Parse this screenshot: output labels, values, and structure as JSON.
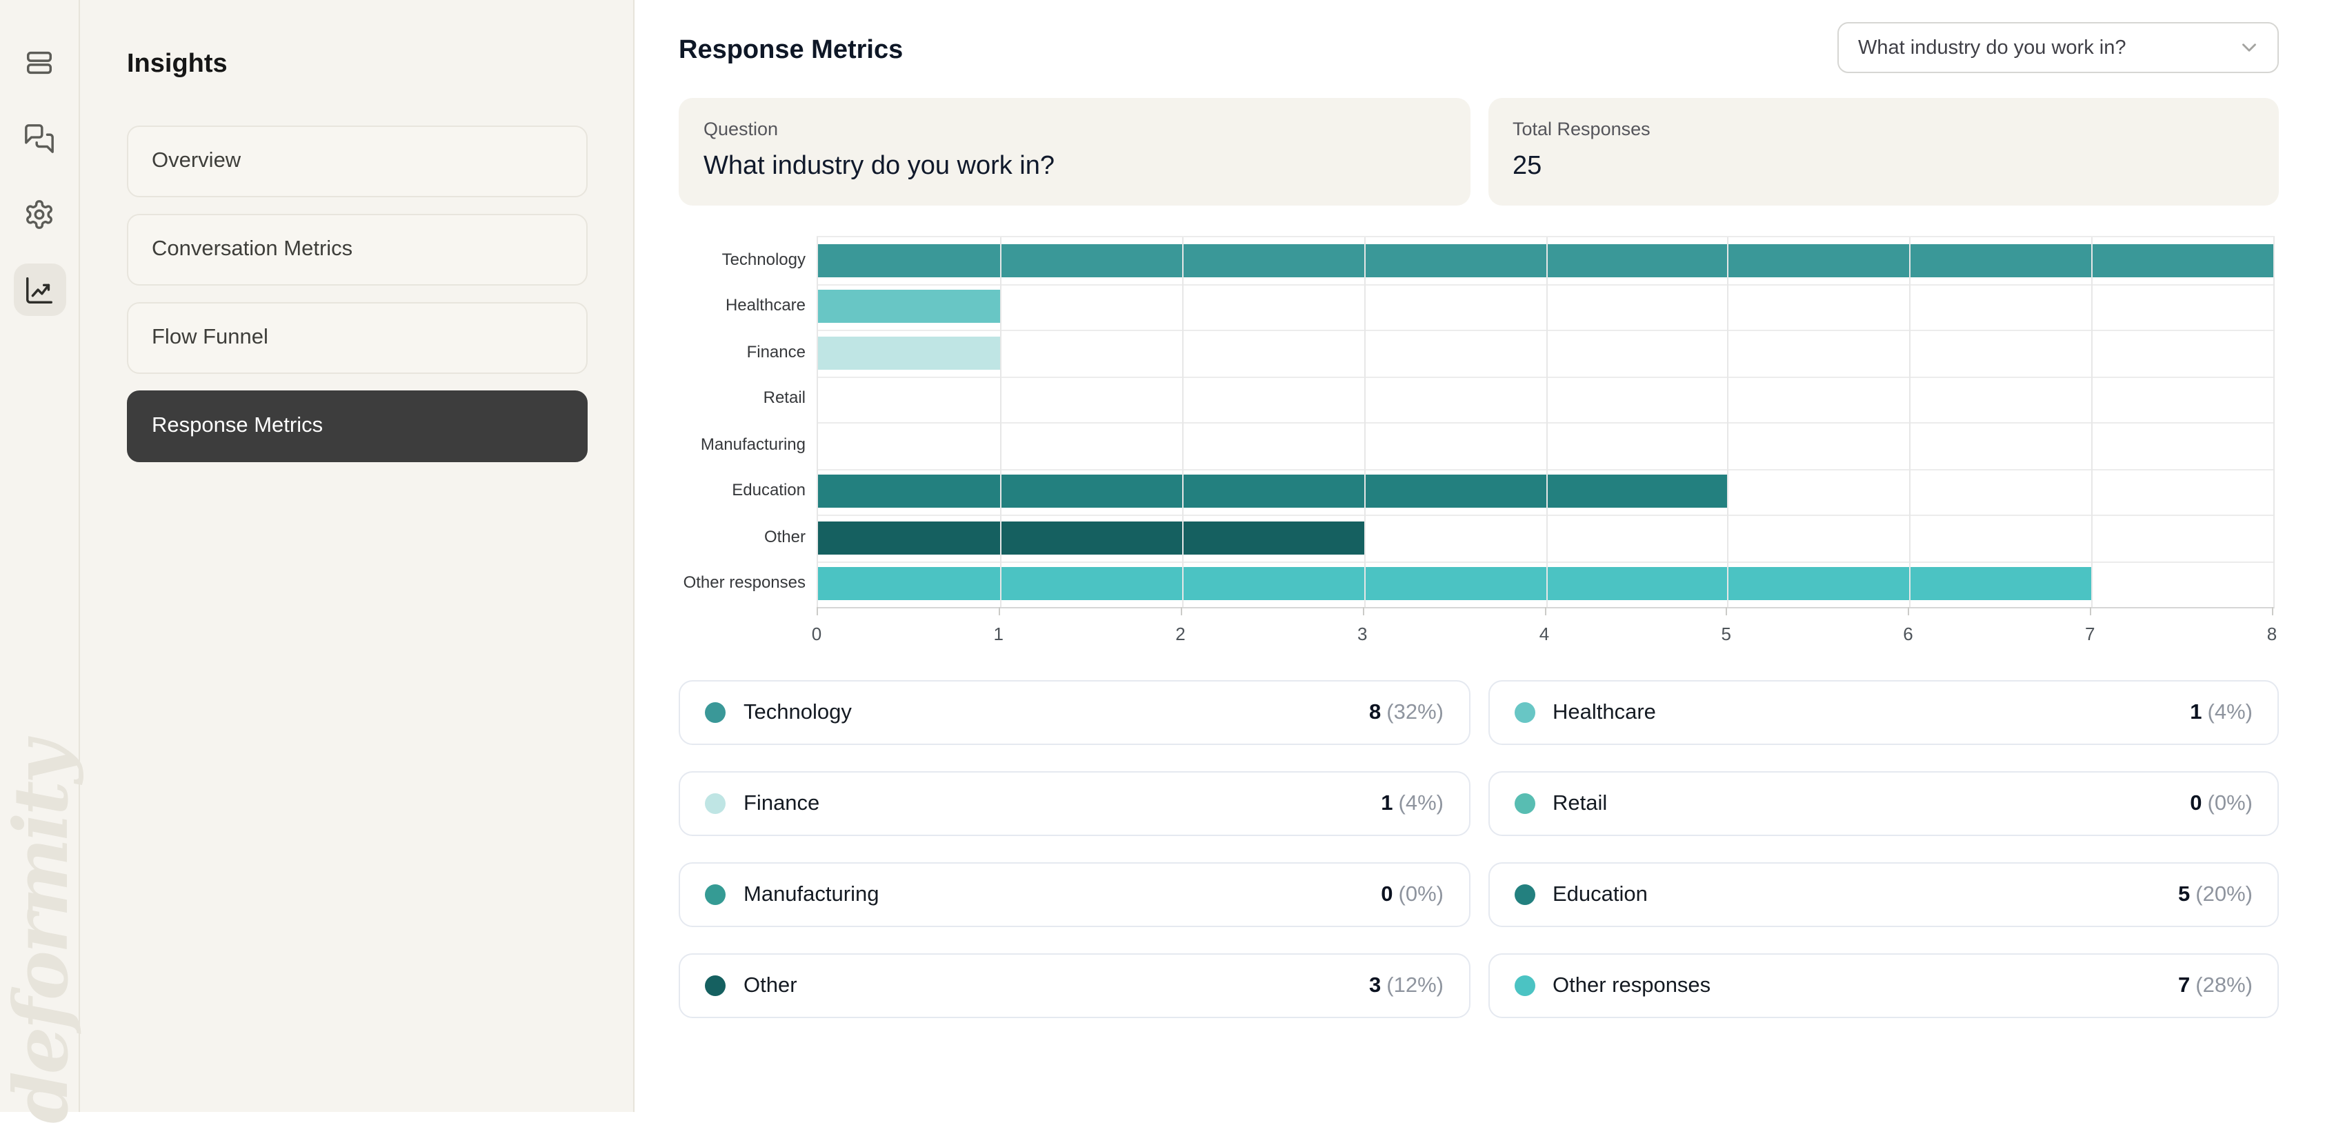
{
  "app": {
    "watermark": "deformity"
  },
  "rail": {
    "items": [
      {
        "icon": "rows-icon",
        "active": false
      },
      {
        "icon": "messages-icon",
        "active": false
      },
      {
        "icon": "settings-icon",
        "active": false
      },
      {
        "icon": "insights-chart-icon",
        "active": true
      }
    ]
  },
  "sidebar": {
    "title": "Insights",
    "items": [
      {
        "label": "Overview",
        "active": false
      },
      {
        "label": "Conversation Metrics",
        "active": false
      },
      {
        "label": "Flow Funnel",
        "active": false
      },
      {
        "label": "Response Metrics",
        "active": true
      }
    ]
  },
  "header": {
    "title": "Response Metrics",
    "filter_dropdown": {
      "value": "What industry do you work in?"
    }
  },
  "summary_cards": [
    {
      "label": "Question",
      "value": "What industry do you work in?"
    },
    {
      "label": "Total Responses",
      "value": "25"
    }
  ],
  "chart_data": {
    "type": "bar",
    "orientation": "horizontal",
    "title": "",
    "xlabel": "",
    "ylabel": "",
    "categories": [
      "Technology",
      "Healthcare",
      "Finance",
      "Retail",
      "Manufacturing",
      "Education",
      "Other",
      "Other responses"
    ],
    "values": [
      8,
      1,
      1,
      0,
      0,
      5,
      3,
      7
    ],
    "bar_colors": [
      "#3A9898",
      "#68C6C5",
      "#BFE5E4",
      "#58BDB2",
      "#359B94",
      "#23807F",
      "#156060",
      "#4BC3C3"
    ],
    "xlim": [
      0,
      8
    ],
    "x_ticks": [
      0,
      1,
      2,
      3,
      4,
      5,
      6,
      7,
      8
    ],
    "grid": true,
    "legend_position": "below"
  },
  "legend": [
    {
      "label": "Technology",
      "value": "8",
      "percent": "32%",
      "color": "#3A9898"
    },
    {
      "label": "Healthcare",
      "value": "1",
      "percent": "4%",
      "color": "#68C6C5"
    },
    {
      "label": "Finance",
      "value": "1",
      "percent": "4%",
      "color": "#BFE5E4"
    },
    {
      "label": "Retail",
      "value": "0",
      "percent": "0%",
      "color": "#58BDB2"
    },
    {
      "label": "Manufacturing",
      "value": "0",
      "percent": "0%",
      "color": "#359B94"
    },
    {
      "label": "Education",
      "value": "5",
      "percent": "20%",
      "color": "#23807F"
    },
    {
      "label": "Other",
      "value": "3",
      "percent": "12%",
      "color": "#156060"
    },
    {
      "label": "Other responses",
      "value": "7",
      "percent": "28%",
      "color": "#4BC3C3"
    }
  ]
}
